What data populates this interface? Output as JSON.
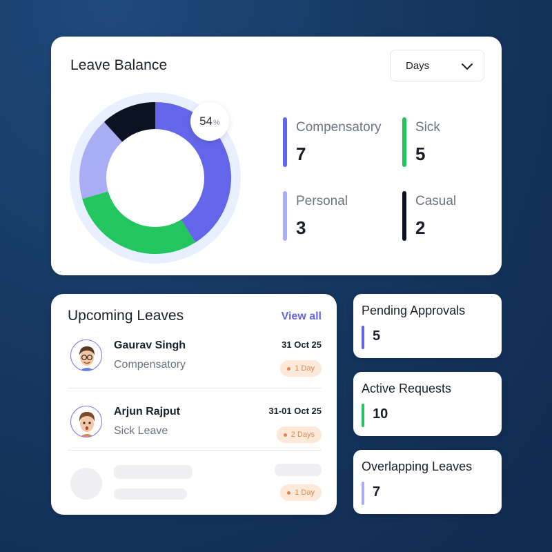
{
  "balance": {
    "title": "Leave Balance",
    "dropdown_value": "Days",
    "percent": "54",
    "percent_symbol": "%",
    "colors": {
      "compensatory": "#6366e8",
      "sick": "#22c55e",
      "personal": "#a9adf3",
      "casual": "#0b1322",
      "track": "#e8efff"
    },
    "stats": [
      {
        "label": "Compensatory",
        "value": "7"
      },
      {
        "label": "Sick",
        "value": "5"
      },
      {
        "label": "Personal",
        "value": "3"
      },
      {
        "label": "Casual",
        "value": "2"
      }
    ]
  },
  "chart_data": {
    "type": "pie",
    "categories": [
      "Compensatory",
      "Sick",
      "Personal",
      "Casual"
    ],
    "values": [
      7,
      5,
      3,
      2
    ],
    "title": "Leave Balance"
  },
  "upcoming": {
    "title": "Upcoming Leaves",
    "view_all": "View all",
    "items": [
      {
        "name": "Gaurav Singh",
        "type": "Compensatory",
        "date": "31 Oct 25",
        "duration": "1 Day"
      },
      {
        "name": "Arjun Rajput",
        "type": "Sick Leave",
        "date": "31-01 Oct 25",
        "duration": "2 Days"
      },
      {
        "duration": "1 Day"
      }
    ]
  },
  "pending": {
    "title": "Pending Approvals",
    "value": "5"
  },
  "active": {
    "title": "Active Requests",
    "value": "10"
  },
  "overlapping": {
    "title": "Overlapping Leaves",
    "value": "7"
  }
}
